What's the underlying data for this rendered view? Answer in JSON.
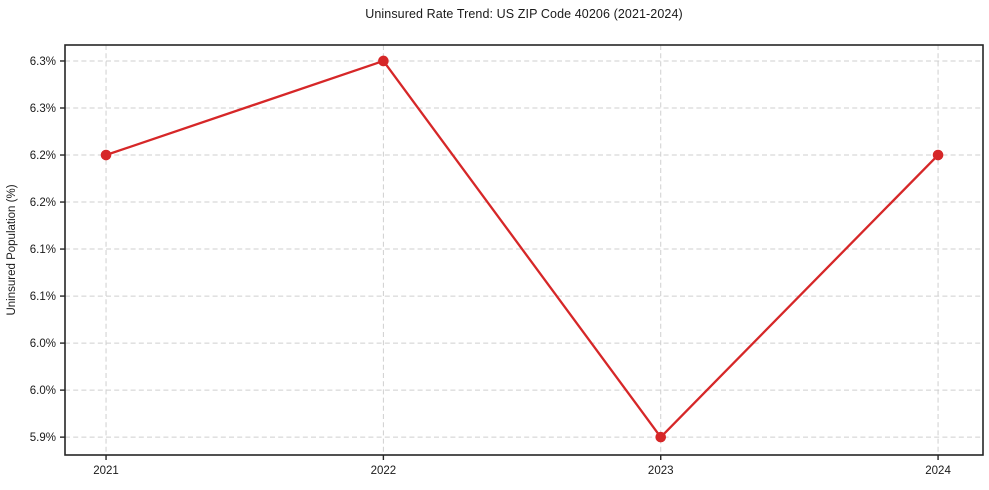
{
  "chart_data": {
    "type": "line",
    "title": "Uninsured Rate Trend: US ZIP Code 40206 (2021-2024)",
    "xlabel": "",
    "ylabel": "Uninsured Population (%)",
    "x": [
      2021,
      2022,
      2023,
      2024
    ],
    "values": [
      6.2,
      6.3,
      5.9,
      6.2
    ],
    "value_unit": "%",
    "xlim": [
      2020.852,
      2024.162
    ],
    "ylim": [
      5.881,
      6.317
    ],
    "xticks": [
      {
        "value": 2021,
        "label": "2021"
      },
      {
        "value": 2022,
        "label": "2022"
      },
      {
        "value": 2023,
        "label": "2023"
      },
      {
        "value": 2024,
        "label": "2024"
      }
    ],
    "yticks": [
      {
        "value": 5.9,
        "label": "5.9%"
      },
      {
        "value": 5.95,
        "label": "6.0%"
      },
      {
        "value": 6.0,
        "label": "6.0%"
      },
      {
        "value": 6.05,
        "label": "6.1%"
      },
      {
        "value": 6.1,
        "label": "6.1%"
      },
      {
        "value": 6.15,
        "label": "6.2%"
      },
      {
        "value": 6.2,
        "label": "6.2%"
      },
      {
        "value": 6.25,
        "label": "6.3%"
      },
      {
        "value": 6.3,
        "label": "6.3%"
      }
    ],
    "grid": true,
    "legend": null,
    "line_color": "#d62728",
    "marker": "circle",
    "grid_color": "#cfcfcf",
    "axis_color": "#262626"
  }
}
